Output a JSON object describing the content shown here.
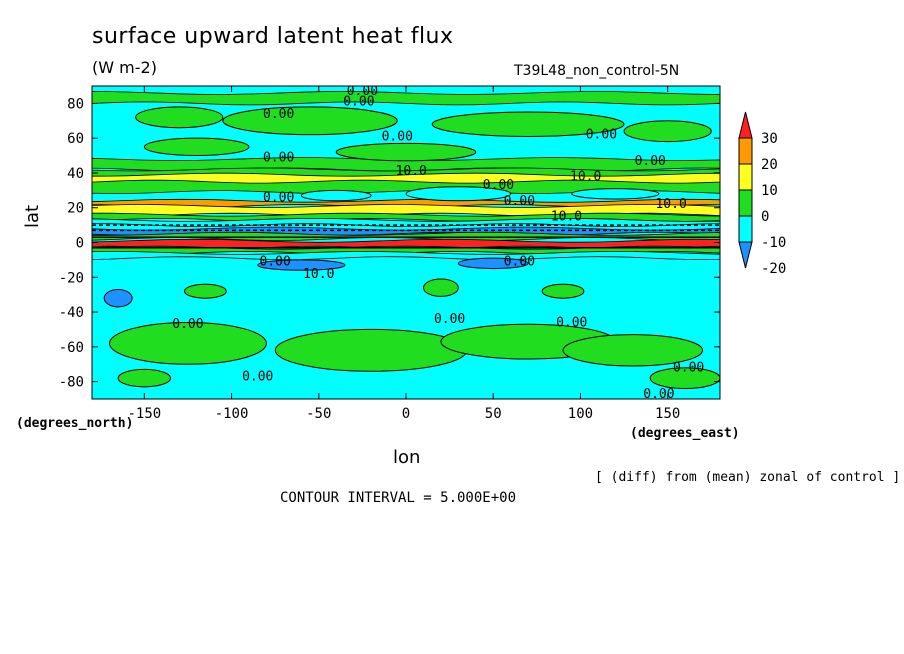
{
  "chart_data": {
    "type": "contour",
    "title": "surface upward latent heat flux",
    "units": "(W m-2)",
    "run_label": "T39L48_non_control-5N",
    "xlabel": "lon",
    "ylabel": "lat",
    "x_units": "(degrees_east)",
    "y_units": "(degrees_north)",
    "xlim": [
      -180,
      180
    ],
    "ylim": [
      -90,
      90
    ],
    "x_ticks": [
      -150,
      -100,
      -50,
      0,
      50,
      100,
      150
    ],
    "x_tick_labels": [
      "-150",
      "-100",
      "-50",
      "0",
      "50",
      "100",
      "150"
    ],
    "y_ticks": [
      80,
      60,
      40,
      20,
      0,
      -20,
      -40,
      -60,
      -80
    ],
    "y_tick_labels": [
      "80",
      "60",
      "40",
      "20",
      "0",
      "-20",
      "-40",
      "-60",
      "-80"
    ],
    "colorbar": {
      "levels": [
        30,
        20,
        10,
        0,
        -10,
        -20
      ],
      "labels": [
        "30",
        "20",
        "10",
        "0",
        "-10",
        "-20"
      ],
      "colors": [
        "#ff2020",
        "#ff9a00",
        "#ffff20",
        "#20dd20",
        "#00ffff",
        "#1e90ff"
      ]
    },
    "background_color": "#00ffff",
    "bands": [
      {
        "lat_min": 80,
        "lat_max": 86,
        "color": "#20dd20"
      },
      {
        "lat_min": 42,
        "lat_max": 48,
        "color": "#20dd20"
      },
      {
        "lat_min": 29,
        "lat_max": 42,
        "color": "#20dd20"
      },
      {
        "lat_min": 35,
        "lat_max": 39,
        "color": "#ffff20"
      },
      {
        "lat_min": 21,
        "lat_max": 24,
        "color": "#ff9a00"
      },
      {
        "lat_min": 16,
        "lat_max": 21,
        "color": "#ffff20"
      },
      {
        "lat_min": 13,
        "lat_max": 16,
        "color": "#20dd20"
      },
      {
        "lat_min": 10,
        "lat_max": 13,
        "color": "#00ffff"
      },
      {
        "lat_min": 5,
        "lat_max": 8,
        "color": "#1e90ff"
      },
      {
        "lat_min": 2,
        "lat_max": 5,
        "color": "#20dd20"
      },
      {
        "lat_min": -3,
        "lat_max": 1,
        "color": "#ff2020"
      },
      {
        "lat_min": -6,
        "lat_max": -3,
        "color": "#20dd20"
      },
      {
        "lat_min": -9,
        "lat_max": -6,
        "color": "#00ffff"
      }
    ],
    "patches": [
      {
        "lon": -130,
        "lat": 72,
        "rlon": 25,
        "rlat": 6,
        "color": "#20dd20"
      },
      {
        "lon": -55,
        "lat": 70,
        "rlon": 50,
        "rlat": 8,
        "color": "#20dd20"
      },
      {
        "lon": 70,
        "lat": 68,
        "rlon": 55,
        "rlat": 7,
        "color": "#20dd20"
      },
      {
        "lon": 150,
        "lat": 64,
        "rlon": 25,
        "rlat": 6,
        "color": "#20dd20"
      },
      {
        "lon": -120,
        "lat": 55,
        "rlon": 30,
        "rlat": 5,
        "color": "#20dd20"
      },
      {
        "lon": 0,
        "lat": 52,
        "rlon": 40,
        "rlat": 5,
        "color": "#20dd20"
      },
      {
        "lon": 30,
        "lat": 28,
        "rlon": 30,
        "rlat": 4,
        "color": "#00ffff"
      },
      {
        "lon": -40,
        "lat": 27,
        "rlon": 20,
        "rlat": 3,
        "color": "#00ffff"
      },
      {
        "lon": 120,
        "lat": 28,
        "rlon": 25,
        "rlat": 3,
        "color": "#00ffff"
      },
      {
        "lon": -60,
        "lat": -13,
        "rlon": 25,
        "rlat": 3,
        "color": "#1e90ff"
      },
      {
        "lon": 50,
        "lat": -12,
        "rlon": 20,
        "rlat": 3,
        "color": "#1e90ff"
      },
      {
        "lon": -165,
        "lat": -32,
        "rlon": 8,
        "rlat": 5,
        "color": "#1e90ff"
      },
      {
        "lon": -115,
        "lat": -28,
        "rlon": 12,
        "rlat": 4,
        "color": "#20dd20"
      },
      {
        "lon": 20,
        "lat": -26,
        "rlon": 10,
        "rlat": 5,
        "color": "#20dd20"
      },
      {
        "lon": 90,
        "lat": -28,
        "rlon": 12,
        "rlat": 4,
        "color": "#20dd20"
      },
      {
        "lon": -125,
        "lat": -58,
        "rlon": 45,
        "rlat": 12,
        "color": "#20dd20"
      },
      {
        "lon": -20,
        "lat": -62,
        "rlon": 55,
        "rlat": 12,
        "color": "#20dd20"
      },
      {
        "lon": 70,
        "lat": -57,
        "rlon": 50,
        "rlat": 10,
        "color": "#20dd20"
      },
      {
        "lon": 130,
        "lat": -62,
        "rlon": 40,
        "rlat": 9,
        "color": "#20dd20"
      },
      {
        "lon": 160,
        "lat": -78,
        "rlon": 20,
        "rlat": 6,
        "color": "#20dd20"
      },
      {
        "lon": -150,
        "lat": -78,
        "rlon": 15,
        "rlat": 5,
        "color": "#20dd20"
      }
    ],
    "contour_labels": [
      {
        "lon": -25,
        "lat": 87,
        "text": "0.00"
      },
      {
        "lon": -27,
        "lat": 81,
        "text": "0.00"
      },
      {
        "lon": -73,
        "lat": 74,
        "text": "0.00"
      },
      {
        "lon": -5,
        "lat": 61,
        "text": "0.00"
      },
      {
        "lon": 112,
        "lat": 62,
        "text": "0.00"
      },
      {
        "lon": -73,
        "lat": 49,
        "text": "0.00"
      },
      {
        "lon": 140,
        "lat": 47,
        "text": "0.00"
      },
      {
        "lon": 3,
        "lat": 41,
        "text": "10.0"
      },
      {
        "lon": 103,
        "lat": 38,
        "text": "10.0"
      },
      {
        "lon": 53,
        "lat": 33,
        "text": "0.00"
      },
      {
        "lon": -73,
        "lat": 26,
        "text": "0.00"
      },
      {
        "lon": 65,
        "lat": 24,
        "text": "0.00"
      },
      {
        "lon": 152,
        "lat": 22,
        "text": "10.0"
      },
      {
        "lon": 92,
        "lat": 15,
        "text": "10.0"
      },
      {
        "lon": -75,
        "lat": -11,
        "text": "0.00"
      },
      {
        "lon": -50,
        "lat": -18,
        "text": "10.0"
      },
      {
        "lon": 65,
        "lat": -11,
        "text": "0.00"
      },
      {
        "lon": -125,
        "lat": -47,
        "text": "0.00"
      },
      {
        "lon": 25,
        "lat": -44,
        "text": "0.00"
      },
      {
        "lon": 95,
        "lat": -46,
        "text": "0.00"
      },
      {
        "lon": 162,
        "lat": -72,
        "text": "0.00"
      },
      {
        "lon": -85,
        "lat": -77,
        "text": "0.00"
      },
      {
        "lon": 145,
        "lat": -87,
        "text": "0.00"
      }
    ]
  },
  "xunits_text": "(degrees_east)",
  "yunits_text": "(degrees_north)",
  "footnote": "[ (diff) from (mean) zonal of control ]",
  "contour_interval": "CONTOUR INTERVAL = 5.000E+00"
}
